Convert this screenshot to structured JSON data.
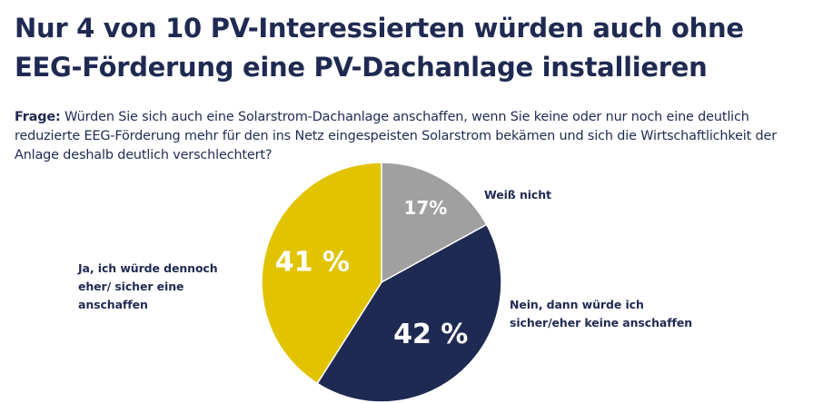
{
  "title": "Nur 4 von 10 PV-Interessierten würden auch ohne EEG-Förderung eine PV-Dachanlage installieren",
  "question": {
    "label": "Frage:",
    "text": "Würden Sie sich auch eine Solarstrom-Dachanlage anschaffen, wenn Sie keine oder nur noch eine deutlich reduzierte EEG-Förderung mehr für den ins Netz eingespeisten Solarstrom bekämen und sich die Wirtschaftlichkeit der Anlage deshalb deutlich verschlechtert?"
  },
  "chart_data": {
    "type": "pie",
    "slices": [
      {
        "label": "Weiß nicht",
        "value": 17,
        "display": "17%",
        "color": "#a0a0a0",
        "label_color": "#ffffff"
      },
      {
        "label": "Nein, dann würde ich sicher/eher keine anschaffen",
        "value": 42,
        "display": "42 %",
        "color": "#1e2a52",
        "label_color": "#ffffff"
      },
      {
        "label": "Ja, ich würde dennoch eher/ sicher eine anschaffen",
        "value": 41,
        "display": "41 %",
        "color": "#e1c300",
        "label_color": "#ffffff"
      }
    ],
    "start": "12 o'clock, clockwise",
    "legend": "labels beside slices"
  }
}
